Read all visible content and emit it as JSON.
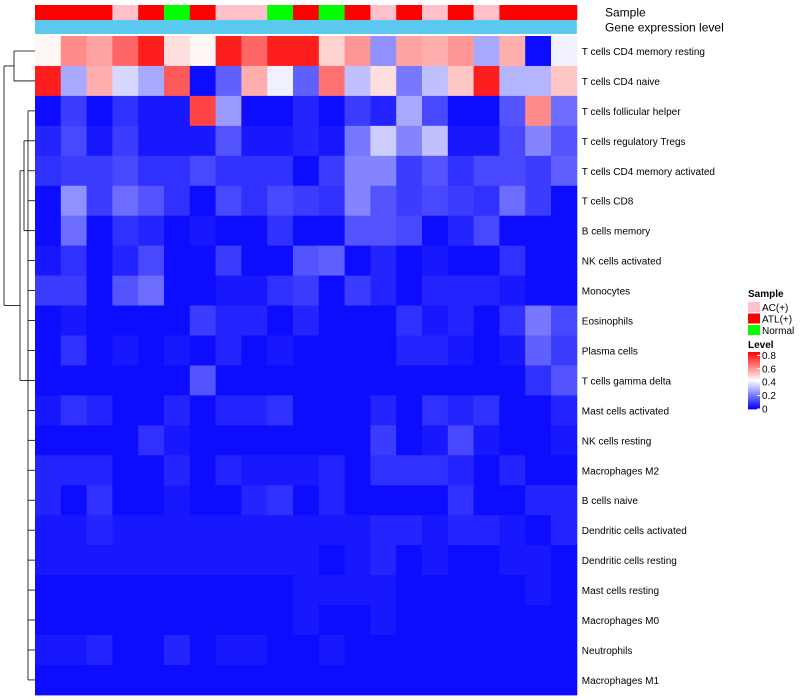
{
  "chart_data": {
    "type": "heatmap",
    "annotation_labels": {
      "sample": "Sample",
      "gene_expression": "Gene expression level"
    },
    "legend": {
      "sample_title": "Sample",
      "sample_items": [
        {
          "label": "AC(+)",
          "color": "#FFC0CB"
        },
        {
          "label": "ATL(+)",
          "color": "#FF0000"
        },
        {
          "label": "Normal",
          "color": "#00FF00"
        }
      ],
      "level_title": "Level",
      "level_ticks": [
        "0.8",
        "0.6",
        "0.4",
        "0.2",
        "0"
      ],
      "level_tick_values": [
        0.8,
        0.6,
        0.4,
        0.2,
        0
      ],
      "level_range": [
        0,
        0.85
      ],
      "color_stops": [
        "#0000FF",
        "#FFFFFF",
        "#FF0000"
      ],
      "gene_expression_color": "#5BC8F0"
    },
    "samples": [
      "ATL(+)",
      "ATL(+)",
      "ATL(+)",
      "AC(+)",
      "ATL(+)",
      "Normal",
      "ATL(+)",
      "AC(+)",
      "AC(+)",
      "Normal",
      "ATL(+)",
      "Normal",
      "ATL(+)",
      "AC(+)",
      "ATL(+)",
      "AC(+)",
      "ATL(+)",
      "AC(+)",
      "ATL(+)",
      "ATL(+)",
      "ATL(+)"
    ],
    "rows": [
      "T cells CD4 memory resting",
      "T cells CD4 naive",
      "T cells follicular helper",
      "T cells regulatory  Tregs",
      "T cells CD4 memory activated",
      "T cells CD8",
      "B cells memory",
      "NK cells activated",
      "Monocytes",
      "Eosinophils",
      "Plasma cells",
      "T cells gamma delta",
      "Mast cells activated",
      "NK cells resting",
      "Macrophages M2",
      "B cells naive",
      "Dendritic cells activated",
      "Dendritic cells resting",
      "Mast cells resting",
      "Macrophages M0",
      "Neutrophils",
      "Macrophages M1"
    ],
    "values": [
      [
        0.44,
        0.62,
        0.58,
        0.68,
        0.8,
        0.48,
        0.44,
        0.8,
        0.68,
        0.8,
        0.8,
        0.5,
        0.6,
        0.24,
        0.58,
        0.56,
        0.6,
        0.28,
        0.56,
        0.02,
        0.4
      ],
      [
        0.8,
        0.28,
        0.56,
        0.36,
        0.28,
        0.7,
        0.02,
        0.16,
        0.56,
        0.4,
        0.16,
        0.66,
        0.32,
        0.48,
        0.2,
        0.32,
        0.52,
        0.8,
        0.3,
        0.3,
        0.52
      ],
      [
        0.02,
        0.1,
        0.02,
        0.08,
        0.04,
        0.04,
        0.74,
        0.26,
        0.02,
        0.02,
        0.06,
        0.02,
        0.1,
        0.06,
        0.28,
        0.12,
        0.02,
        0.02,
        0.14,
        0.62,
        0.18
      ],
      [
        0.06,
        0.12,
        0.04,
        0.1,
        0.04,
        0.04,
        0.04,
        0.14,
        0.04,
        0.04,
        0.06,
        0.04,
        0.2,
        0.34,
        0.22,
        0.32,
        0.04,
        0.04,
        0.12,
        0.22,
        0.14
      ],
      [
        0.08,
        0.1,
        0.1,
        0.12,
        0.08,
        0.08,
        0.12,
        0.08,
        0.08,
        0.08,
        0.02,
        0.1,
        0.22,
        0.22,
        0.1,
        0.14,
        0.08,
        0.12,
        0.12,
        0.1,
        0.16
      ],
      [
        0.02,
        0.24,
        0.1,
        0.18,
        0.14,
        0.08,
        0.02,
        0.12,
        0.08,
        0.12,
        0.1,
        0.08,
        0.22,
        0.14,
        0.1,
        0.12,
        0.1,
        0.08,
        0.18,
        0.1,
        0.02
      ],
      [
        0.02,
        0.18,
        0.02,
        0.08,
        0.06,
        0.02,
        0.04,
        0.02,
        0.02,
        0.08,
        0.02,
        0.02,
        0.14,
        0.14,
        0.12,
        0.02,
        0.06,
        0.12,
        0.02,
        0.02,
        0.02
      ],
      [
        0.04,
        0.08,
        0.02,
        0.06,
        0.12,
        0.02,
        0.02,
        0.1,
        0.02,
        0.02,
        0.14,
        0.16,
        0.02,
        0.06,
        0.02,
        0.04,
        0.02,
        0.02,
        0.08,
        0.02,
        0.02
      ],
      [
        0.1,
        0.1,
        0.02,
        0.14,
        0.18,
        0.02,
        0.02,
        0.04,
        0.04,
        0.08,
        0.1,
        0.02,
        0.1,
        0.06,
        0.02,
        0.06,
        0.06,
        0.06,
        0.04,
        0.02,
        0.02
      ],
      [
        0.02,
        0.04,
        0.02,
        0.02,
        0.02,
        0.02,
        0.1,
        0.06,
        0.06,
        0.02,
        0.06,
        0.02,
        0.02,
        0.02,
        0.08,
        0.04,
        0.06,
        0.02,
        0.08,
        0.2,
        0.12
      ],
      [
        0.02,
        0.08,
        0.02,
        0.04,
        0.02,
        0.04,
        0.02,
        0.06,
        0.02,
        0.04,
        0.02,
        0.02,
        0.02,
        0.02,
        0.06,
        0.06,
        0.04,
        0.02,
        0.04,
        0.16,
        0.1
      ],
      [
        0.02,
        0.02,
        0.02,
        0.02,
        0.02,
        0.02,
        0.14,
        0.02,
        0.02,
        0.02,
        0.02,
        0.02,
        0.02,
        0.02,
        0.02,
        0.02,
        0.02,
        0.02,
        0.02,
        0.08,
        0.14
      ],
      [
        0.04,
        0.08,
        0.06,
        0.02,
        0.02,
        0.06,
        0.02,
        0.06,
        0.06,
        0.08,
        0.02,
        0.02,
        0.02,
        0.06,
        0.02,
        0.08,
        0.06,
        0.08,
        0.02,
        0.02,
        0.06
      ],
      [
        0.02,
        0.02,
        0.02,
        0.02,
        0.08,
        0.04,
        0.02,
        0.02,
        0.02,
        0.02,
        0.02,
        0.02,
        0.02,
        0.1,
        0.02,
        0.04,
        0.12,
        0.04,
        0.02,
        0.02,
        0.04
      ],
      [
        0.06,
        0.06,
        0.06,
        0.02,
        0.02,
        0.06,
        0.02,
        0.06,
        0.04,
        0.04,
        0.04,
        0.06,
        0.02,
        0.08,
        0.08,
        0.08,
        0.06,
        0.02,
        0.06,
        0.02,
        0.02
      ],
      [
        0.06,
        0.02,
        0.08,
        0.02,
        0.02,
        0.04,
        0.02,
        0.02,
        0.06,
        0.08,
        0.02,
        0.06,
        0.02,
        0.02,
        0.02,
        0.02,
        0.08,
        0.02,
        0.02,
        0.06,
        0.06
      ],
      [
        0.04,
        0.04,
        0.06,
        0.04,
        0.04,
        0.04,
        0.04,
        0.04,
        0.04,
        0.04,
        0.04,
        0.04,
        0.04,
        0.06,
        0.06,
        0.04,
        0.06,
        0.06,
        0.04,
        0.02,
        0.06
      ],
      [
        0.04,
        0.04,
        0.04,
        0.04,
        0.04,
        0.04,
        0.04,
        0.04,
        0.04,
        0.04,
        0.04,
        0.02,
        0.04,
        0.06,
        0.02,
        0.04,
        0.02,
        0.02,
        0.04,
        0.04,
        0.02
      ],
      [
        0.02,
        0.02,
        0.02,
        0.02,
        0.02,
        0.02,
        0.02,
        0.02,
        0.02,
        0.02,
        0.04,
        0.04,
        0.04,
        0.04,
        0.02,
        0.02,
        0.02,
        0.02,
        0.02,
        0.04,
        0.02
      ],
      [
        0.02,
        0.02,
        0.02,
        0.02,
        0.02,
        0.02,
        0.02,
        0.02,
        0.02,
        0.02,
        0.04,
        0.02,
        0.02,
        0.04,
        0.02,
        0.02,
        0.02,
        0.02,
        0.02,
        0.02,
        0.02
      ],
      [
        0.04,
        0.04,
        0.06,
        0.02,
        0.02,
        0.06,
        0.02,
        0.04,
        0.04,
        0.02,
        0.02,
        0.04,
        0.02,
        0.02,
        0.02,
        0.02,
        0.02,
        0.02,
        0.02,
        0.02,
        0.02
      ],
      [
        0.02,
        0.02,
        0.02,
        0.02,
        0.02,
        0.02,
        0.02,
        0.02,
        0.02,
        0.02,
        0.02,
        0.02,
        0.02,
        0.02,
        0.02,
        0.02,
        0.02,
        0.02,
        0.02,
        0.02,
        0.02
      ]
    ],
    "dendrogram": true
  }
}
